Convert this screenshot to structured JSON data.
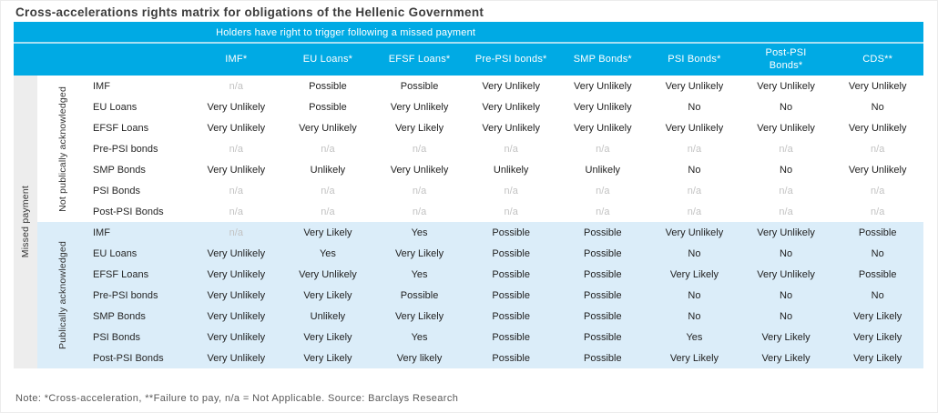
{
  "colors": {
    "header_bg": "#00aae4",
    "band_separator": "#a8dff2",
    "block2_bg": "#dbedf9",
    "missed_strip_bg": "#ededed",
    "na_text": "#c2c2c2",
    "cell_text": "#1f1f1f",
    "title_text": "#3d3d3d",
    "footnote_text": "#595959"
  },
  "chart_data": {
    "type": "table",
    "title": "Cross-accelerations rights matrix for obligations of the Hellenic Government",
    "banner": "Holders have right to trigger following a missed payment",
    "row_axis_label": "Missed payment",
    "columns": [
      "IMF*",
      "EU Loans*",
      "EFSF Loans*",
      "Pre-PSI bonds*",
      "SMP Bonds*",
      "PSI Bonds*",
      "Post-PSI\nBonds*",
      "CDS**"
    ],
    "row_groups": [
      {
        "label": "Not publically acknowledged",
        "rows": [
          {
            "label": "IMF",
            "cells": [
              "n/a",
              "Possible",
              "Possible",
              "Very Unlikely",
              "Very Unlikely",
              "Very Unlikely",
              "Very Unlikely",
              "Very Unlikely"
            ]
          },
          {
            "label": "EU Loans",
            "cells": [
              "Very Unlikely",
              "Possible",
              "Very Unlikely",
              "Very Unlikely",
              "Very Unlikely",
              "No",
              "No",
              "No"
            ]
          },
          {
            "label": "EFSF Loans",
            "cells": [
              "Very Unlikely",
              "Very Unlikely",
              "Very Likely",
              "Very Unlikely",
              "Very Unlikely",
              "Very Unlikely",
              "Very Unlikely",
              "Very Unlikely"
            ]
          },
          {
            "label": "Pre-PSI bonds",
            "cells": [
              "n/a",
              "n/a",
              "n/a",
              "n/a",
              "n/a",
              "n/a",
              "n/a",
              "n/a"
            ]
          },
          {
            "label": "SMP Bonds",
            "cells": [
              "Very Unlikely",
              "Unlikely",
              "Very Unlikely",
              "Unlikely",
              "Unlikely",
              "No",
              "No",
              "Very Unlikely"
            ]
          },
          {
            "label": "PSI Bonds",
            "cells": [
              "n/a",
              "n/a",
              "n/a",
              "n/a",
              "n/a",
              "n/a",
              "n/a",
              "n/a"
            ]
          },
          {
            "label": "Post-PSI Bonds",
            "cells": [
              "n/a",
              "n/a",
              "n/a",
              "n/a",
              "n/a",
              "n/a",
              "n/a",
              "n/a"
            ]
          }
        ]
      },
      {
        "label": "Publically acknowledged",
        "rows": [
          {
            "label": "IMF",
            "cells": [
              "n/a",
              "Very Likely",
              "Yes",
              "Possible",
              "Possible",
              "Very Unlikely",
              "Very Unlikely",
              "Possible"
            ]
          },
          {
            "label": "EU Loans",
            "cells": [
              "Very Unlikely",
              "Yes",
              "Very Likely",
              "Possible",
              "Possible",
              "No",
              "No",
              "No"
            ]
          },
          {
            "label": "EFSF Loans",
            "cells": [
              "Very Unlikely",
              "Very Unlikely",
              "Yes",
              "Possible",
              "Possible",
              "Very Likely",
              "Very Unlikely",
              "Possible"
            ]
          },
          {
            "label": "Pre-PSI bonds",
            "cells": [
              "Very Unlikely",
              "Very Likely",
              "Possible",
              "Possible",
              "Possible",
              "No",
              "No",
              "No"
            ]
          },
          {
            "label": "SMP Bonds",
            "cells": [
              "Very Unlikely",
              "Unlikely",
              "Very Likely",
              "Possible",
              "Possible",
              "No",
              "No",
              "Very Likely"
            ]
          },
          {
            "label": "PSI Bonds",
            "cells": [
              "Very Unlikely",
              "Very Likely",
              "Yes",
              "Possible",
              "Possible",
              "Yes",
              "Very Likely",
              "Very Likely"
            ]
          },
          {
            "label": "Post-PSI Bonds",
            "cells": [
              "Very Unlikely",
              "Very Likely",
              "Very likely",
              "Possible",
              "Possible",
              "Very Likely",
              "Very Likely",
              "Very Likely"
            ]
          }
        ]
      }
    ],
    "footnote": "Note: *Cross-acceleration, **Failure to pay, n/a = Not Applicable. Source: Barclays Research"
  }
}
